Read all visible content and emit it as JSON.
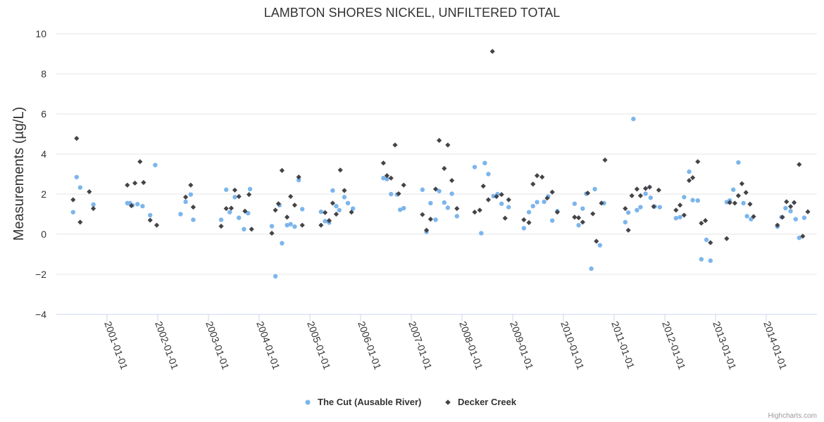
{
  "chart_data": {
    "type": "scatter",
    "title": "LAMBTON SHORES NICKEL, UNFILTERED TOTAL",
    "ylabel": "Measurements (µg/L)",
    "xlabel": "",
    "ylim": [
      -4,
      10
    ],
    "yticks": [
      -4,
      -2,
      0,
      2,
      4,
      6,
      8,
      10
    ],
    "xlim": [
      2000.0,
      2015.0
    ],
    "xtick_values": [
      2001,
      2002,
      2003,
      2004,
      2005,
      2006,
      2007,
      2008,
      2009,
      2010,
      2011,
      2012,
      2013,
      2014
    ],
    "xtick_labels": [
      "2001-01-01",
      "2002-01-01",
      "2003-01-01",
      "2004-01-01",
      "2005-01-01",
      "2006-01-01",
      "2007-01-01",
      "2008-01-01",
      "2009-01-01",
      "2010-01-01",
      "2011-01-01",
      "2012-01-01",
      "2013-01-01",
      "2014-01-01"
    ],
    "grid": "horizontal",
    "legend_position": "bottom-center",
    "credits": "Highcharts.com",
    "series": [
      {
        "name": "The Cut (Ausable River)",
        "color": "#7cb5ec",
        "marker": "circle",
        "points": [
          [
            2000.33,
            1.1
          ],
          [
            2000.4,
            2.85
          ],
          [
            2000.47,
            2.33
          ],
          [
            2000.73,
            1.48
          ],
          [
            2001.4,
            1.55
          ],
          [
            2001.45,
            1.55
          ],
          [
            2001.5,
            1.45
          ],
          [
            2001.6,
            1.5
          ],
          [
            2001.7,
            1.4
          ],
          [
            2001.85,
            0.95
          ],
          [
            2001.95,
            3.45
          ],
          [
            2002.45,
            1.0
          ],
          [
            2002.55,
            1.62
          ],
          [
            2002.65,
            1.98
          ],
          [
            2002.7,
            0.72
          ],
          [
            2003.25,
            0.72
          ],
          [
            2003.35,
            2.22
          ],
          [
            2003.42,
            1.1
          ],
          [
            2003.52,
            1.85
          ],
          [
            2003.6,
            0.82
          ],
          [
            2003.7,
            0.25
          ],
          [
            2003.78,
            1.05
          ],
          [
            2003.82,
            2.25
          ],
          [
            2004.25,
            0.4
          ],
          [
            2004.32,
            -2.1
          ],
          [
            2004.4,
            1.45
          ],
          [
            2004.45,
            -0.45
          ],
          [
            2004.55,
            0.45
          ],
          [
            2004.62,
            0.5
          ],
          [
            2004.7,
            0.38
          ],
          [
            2004.78,
            2.7
          ],
          [
            2004.85,
            1.25
          ],
          [
            2005.22,
            1.12
          ],
          [
            2005.3,
            0.65
          ],
          [
            2005.38,
            0.58
          ],
          [
            2005.45,
            2.18
          ],
          [
            2005.52,
            1.4
          ],
          [
            2005.58,
            1.2
          ],
          [
            2005.68,
            1.85
          ],
          [
            2005.75,
            1.55
          ],
          [
            2005.85,
            1.28
          ],
          [
            2006.45,
            2.8
          ],
          [
            2006.52,
            2.75
          ],
          [
            2006.6,
            2.0
          ],
          [
            2006.72,
            1.98
          ],
          [
            2006.78,
            1.22
          ],
          [
            2006.85,
            1.3
          ],
          [
            2007.22,
            2.22
          ],
          [
            2007.3,
            0.12
          ],
          [
            2007.38,
            1.55
          ],
          [
            2007.48,
            0.72
          ],
          [
            2007.55,
            2.15
          ],
          [
            2007.65,
            1.58
          ],
          [
            2007.72,
            1.32
          ],
          [
            2007.8,
            2.02
          ],
          [
            2007.9,
            0.9
          ],
          [
            2008.25,
            3.35
          ],
          [
            2008.38,
            0.05
          ],
          [
            2008.45,
            3.55
          ],
          [
            2008.52,
            3.0
          ],
          [
            2008.62,
            1.9
          ],
          [
            2008.7,
            2.0
          ],
          [
            2008.78,
            1.52
          ],
          [
            2008.92,
            1.35
          ],
          [
            2009.22,
            0.3
          ],
          [
            2009.32,
            1.1
          ],
          [
            2009.4,
            1.4
          ],
          [
            2009.48,
            1.6
          ],
          [
            2009.62,
            1.62
          ],
          [
            2009.7,
            1.88
          ],
          [
            2009.78,
            0.68
          ],
          [
            2009.88,
            1.15
          ],
          [
            2010.22,
            1.52
          ],
          [
            2010.3,
            0.45
          ],
          [
            2010.38,
            1.28
          ],
          [
            2010.45,
            2.02
          ],
          [
            2010.55,
            -1.72
          ],
          [
            2010.62,
            2.25
          ],
          [
            2010.72,
            -0.55
          ],
          [
            2010.8,
            1.55
          ],
          [
            2011.22,
            0.6
          ],
          [
            2011.28,
            1.08
          ],
          [
            2011.38,
            5.75
          ],
          [
            2011.45,
            1.2
          ],
          [
            2011.52,
            1.35
          ],
          [
            2011.62,
            2.02
          ],
          [
            2011.72,
            1.82
          ],
          [
            2011.8,
            1.38
          ],
          [
            2011.9,
            1.35
          ],
          [
            2012.22,
            0.8
          ],
          [
            2012.3,
            0.85
          ],
          [
            2012.38,
            1.85
          ],
          [
            2012.48,
            3.12
          ],
          [
            2012.55,
            1.7
          ],
          [
            2012.65,
            1.68
          ],
          [
            2012.72,
            -1.25
          ],
          [
            2012.82,
            -0.28
          ],
          [
            2012.9,
            -1.32
          ],
          [
            2013.22,
            1.6
          ],
          [
            2013.28,
            1.68
          ],
          [
            2013.35,
            2.22
          ],
          [
            2013.45,
            3.58
          ],
          [
            2013.55,
            1.55
          ],
          [
            2013.62,
            0.9
          ],
          [
            2013.7,
            0.75
          ],
          [
            2014.22,
            0.38
          ],
          [
            2014.3,
            0.85
          ],
          [
            2014.38,
            1.3
          ],
          [
            2014.48,
            1.15
          ],
          [
            2014.58,
            0.75
          ],
          [
            2014.65,
            -0.18
          ],
          [
            2014.75,
            0.82
          ]
        ]
      },
      {
        "name": "Decker Creek",
        "color": "#434348",
        "marker": "diamond",
        "points": [
          [
            2000.33,
            1.72
          ],
          [
            2000.4,
            4.78
          ],
          [
            2000.47,
            0.6
          ],
          [
            2000.65,
            2.12
          ],
          [
            2000.73,
            1.28
          ],
          [
            2001.4,
            2.45
          ],
          [
            2001.48,
            1.42
          ],
          [
            2001.55,
            2.55
          ],
          [
            2001.65,
            3.62
          ],
          [
            2001.72,
            2.58
          ],
          [
            2001.85,
            0.7
          ],
          [
            2001.98,
            0.45
          ],
          [
            2002.55,
            1.85
          ],
          [
            2002.65,
            2.45
          ],
          [
            2002.7,
            1.35
          ],
          [
            2003.25,
            0.4
          ],
          [
            2003.35,
            1.28
          ],
          [
            2003.45,
            1.3
          ],
          [
            2003.52,
            2.2
          ],
          [
            2003.6,
            1.88
          ],
          [
            2003.72,
            1.15
          ],
          [
            2003.8,
            1.98
          ],
          [
            2003.85,
            0.25
          ],
          [
            2004.25,
            0.05
          ],
          [
            2004.32,
            1.2
          ],
          [
            2004.38,
            1.52
          ],
          [
            2004.45,
            3.18
          ],
          [
            2004.55,
            0.85
          ],
          [
            2004.62,
            1.88
          ],
          [
            2004.7,
            1.45
          ],
          [
            2004.78,
            2.85
          ],
          [
            2004.85,
            0.45
          ],
          [
            2005.22,
            0.45
          ],
          [
            2005.3,
            1.08
          ],
          [
            2005.38,
            0.68
          ],
          [
            2005.45,
            1.55
          ],
          [
            2005.52,
            1.0
          ],
          [
            2005.6,
            3.2
          ],
          [
            2005.68,
            2.18
          ],
          [
            2005.82,
            1.1
          ],
          [
            2006.45,
            3.55
          ],
          [
            2006.52,
            2.92
          ],
          [
            2006.6,
            2.8
          ],
          [
            2006.68,
            4.45
          ],
          [
            2006.75,
            2.02
          ],
          [
            2006.85,
            2.45
          ],
          [
            2007.22,
            0.98
          ],
          [
            2007.3,
            0.2
          ],
          [
            2007.38,
            0.75
          ],
          [
            2007.48,
            2.25
          ],
          [
            2007.55,
            4.68
          ],
          [
            2007.65,
            3.28
          ],
          [
            2007.72,
            4.45
          ],
          [
            2007.8,
            2.68
          ],
          [
            2007.9,
            1.28
          ],
          [
            2008.25,
            1.1
          ],
          [
            2008.35,
            1.2
          ],
          [
            2008.42,
            2.4
          ],
          [
            2008.52,
            1.72
          ],
          [
            2008.6,
            9.12
          ],
          [
            2008.68,
            1.88
          ],
          [
            2008.78,
            1.98
          ],
          [
            2008.85,
            0.8
          ],
          [
            2008.92,
            1.72
          ],
          [
            2009.22,
            0.72
          ],
          [
            2009.32,
            0.58
          ],
          [
            2009.4,
            2.5
          ],
          [
            2009.48,
            2.92
          ],
          [
            2009.58,
            2.85
          ],
          [
            2009.68,
            1.8
          ],
          [
            2009.78,
            2.1
          ],
          [
            2009.88,
            1.1
          ],
          [
            2010.22,
            0.85
          ],
          [
            2010.3,
            0.82
          ],
          [
            2010.38,
            0.6
          ],
          [
            2010.48,
            2.05
          ],
          [
            2010.58,
            1.02
          ],
          [
            2010.65,
            -0.35
          ],
          [
            2010.75,
            1.55
          ],
          [
            2010.82,
            3.7
          ],
          [
            2011.22,
            1.28
          ],
          [
            2011.28,
            0.2
          ],
          [
            2011.35,
            1.92
          ],
          [
            2011.45,
            2.25
          ],
          [
            2011.52,
            1.92
          ],
          [
            2011.62,
            2.28
          ],
          [
            2011.7,
            2.35
          ],
          [
            2011.78,
            1.38
          ],
          [
            2011.88,
            2.2
          ],
          [
            2012.22,
            1.2
          ],
          [
            2012.3,
            1.45
          ],
          [
            2012.38,
            0.95
          ],
          [
            2012.48,
            2.68
          ],
          [
            2012.55,
            2.82
          ],
          [
            2012.65,
            3.62
          ],
          [
            2012.72,
            0.55
          ],
          [
            2012.8,
            0.68
          ],
          [
            2012.9,
            -0.42
          ],
          [
            2013.22,
            -0.22
          ],
          [
            2013.28,
            1.58
          ],
          [
            2013.38,
            1.55
          ],
          [
            2013.45,
            1.92
          ],
          [
            2013.52,
            2.52
          ],
          [
            2013.6,
            2.08
          ],
          [
            2013.68,
            1.5
          ],
          [
            2013.75,
            0.88
          ],
          [
            2014.22,
            0.45
          ],
          [
            2014.32,
            0.85
          ],
          [
            2014.4,
            1.62
          ],
          [
            2014.48,
            1.38
          ],
          [
            2014.55,
            1.58
          ],
          [
            2014.65,
            3.48
          ],
          [
            2014.72,
            -0.1
          ],
          [
            2014.82,
            1.12
          ]
        ]
      }
    ]
  }
}
